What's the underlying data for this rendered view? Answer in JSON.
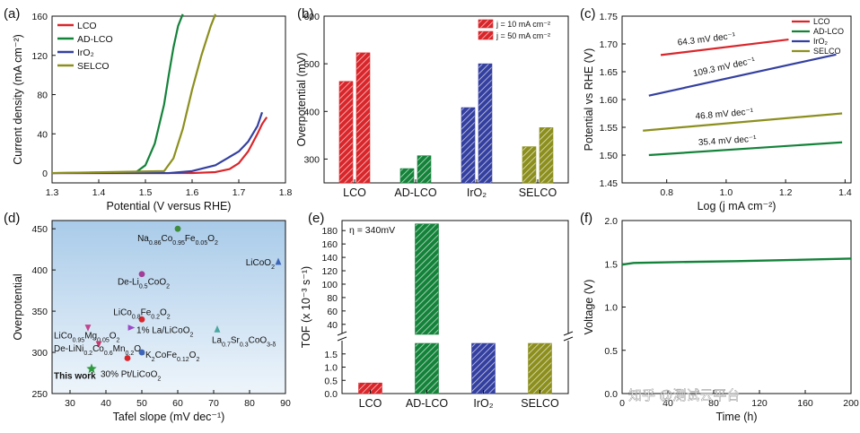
{
  "colors": {
    "LCO": "#d9262b",
    "AD-LCO": "#14833a",
    "IrO2": "#3440a0",
    "SELCO": "#8c8f1d",
    "axis": "#111111",
    "bgBlue": "#a9cbe9"
  },
  "watermark": "知乎 @测试云平台",
  "chart_data": [
    {
      "panel": "(a)",
      "type": "line",
      "xlabel": "Potential (V versus RHE)",
      "ylabel": "Current density (mA cm⁻²)",
      "xlim": [
        1.3,
        1.8
      ],
      "ylim": [
        -10,
        160
      ],
      "xticks": [
        "1.3",
        "1.4",
        "1.5",
        "1.6",
        "1.7",
        "1.8"
      ],
      "yticks": [
        "0",
        "40",
        "80",
        "120",
        "160"
      ],
      "legend": [
        "LCO",
        "AD-LCO",
        "IrO₂",
        "SELCO"
      ],
      "series": [
        {
          "name": "LCO",
          "x": [
            1.3,
            1.6,
            1.65,
            1.68,
            1.7,
            1.72,
            1.74,
            1.75,
            1.76
          ],
          "y": [
            0,
            0,
            1,
            4,
            10,
            22,
            40,
            50,
            57
          ]
        },
        {
          "name": "AD-LCO",
          "x": [
            1.3,
            1.48,
            1.5,
            1.52,
            1.54,
            1.55,
            1.56,
            1.57,
            1.58
          ],
          "y": [
            0,
            1,
            8,
            30,
            70,
            100,
            128,
            150,
            162
          ]
        },
        {
          "name": "IrO2",
          "x": [
            1.3,
            1.55,
            1.6,
            1.65,
            1.7,
            1.72,
            1.74,
            1.75
          ],
          "y": [
            0,
            0,
            2,
            8,
            22,
            32,
            48,
            62
          ]
        },
        {
          "name": "SELCO",
          "x": [
            1.3,
            1.54,
            1.56,
            1.58,
            1.6,
            1.62,
            1.64,
            1.65
          ],
          "y": [
            0,
            2,
            15,
            45,
            85,
            120,
            150,
            162
          ]
        }
      ]
    },
    {
      "panel": "(b)",
      "type": "bar",
      "ylabel": "Overpotential (mV)",
      "ylim": [
        250,
        600
      ],
      "yticks": [
        "300",
        "400",
        "500",
        "600"
      ],
      "categories": [
        "LCO",
        "AD-LCO",
        "IrO₂",
        "SELCO"
      ],
      "series": [
        {
          "name": "j = 10 mA cm⁻²",
          "values": [
            463,
            280,
            408,
            326
          ]
        },
        {
          "name": "j = 50 mA cm⁻²",
          "values": [
            523,
            307,
            500,
            366
          ]
        }
      ]
    },
    {
      "panel": "(c)",
      "type": "line",
      "xlabel": "Log (j mA cm⁻²)",
      "ylabel": "Potential vs RHE (V)",
      "xlim": [
        0.65,
        1.42
      ],
      "ylim": [
        1.45,
        1.75
      ],
      "xticks": [
        "0.8",
        "1.0",
        "1.2",
        "1.4"
      ],
      "yticks": [
        "1.45",
        "1.50",
        "1.55",
        "1.60",
        "1.65",
        "1.70",
        "1.75"
      ],
      "legend": [
        "LCO",
        "AD-LCO",
        "IrO₂",
        "SELCO"
      ],
      "series": [
        {
          "name": "LCO",
          "x": [
            0.78,
            1.21
          ],
          "y": [
            1.68,
            1.708
          ],
          "label": "64.3 mV dec⁻¹"
        },
        {
          "name": "AD-LCO",
          "x": [
            0.74,
            1.39
          ],
          "y": [
            1.5,
            1.523
          ],
          "label": "35.4 mV dec⁻¹"
        },
        {
          "name": "IrO2",
          "x": [
            0.74,
            1.37
          ],
          "y": [
            1.607,
            1.681
          ],
          "label": "109.3 mV dec⁻¹"
        },
        {
          "name": "SELCO",
          "x": [
            0.72,
            1.39
          ],
          "y": [
            1.544,
            1.575
          ],
          "label": "46.8 mV dec⁻¹"
        }
      ]
    },
    {
      "panel": "(d)",
      "type": "scatter",
      "xlabel": "Tafel slope (mV dec⁻¹)",
      "ylabel": "Overpotential",
      "xlim": [
        25,
        90
      ],
      "ylim": [
        250,
        460
      ],
      "xticks": [
        "30",
        "40",
        "50",
        "60",
        "70",
        "80",
        "90"
      ],
      "yticks": [
        "250",
        "300",
        "350",
        "400",
        "450"
      ],
      "points": [
        {
          "x": 60,
          "y": 450,
          "label": "Na0.86Co0.95Fe0.05O2",
          "color": "#3e8c3c",
          "shape": "o"
        },
        {
          "x": 88,
          "y": 410,
          "label": "LiCoO2",
          "color": "#3d66b8",
          "shape": "^"
        },
        {
          "x": 50,
          "y": 395,
          "label": "De-Li0.5CoO2",
          "color": "#a23c96",
          "shape": "o"
        },
        {
          "x": 50,
          "y": 340,
          "label": "LiCo0.8Fe0.2O2",
          "color": "#d9262b",
          "shape": "o"
        },
        {
          "x": 47,
          "y": 330,
          "label": "1% La/LiCoO2",
          "color": "#9b49c9",
          "shape": ">"
        },
        {
          "x": 71,
          "y": 328,
          "label": "La0.7Sr0.3CoO3-δ",
          "color": "#4aa6a0",
          "shape": "^"
        },
        {
          "x": 35,
          "y": 330,
          "label": "LiCo0.95Mg0.05O2",
          "color": "#c5448f",
          "shape": "v"
        },
        {
          "x": 38,
          "y": 310,
          "label": "De-LiNi0.2Co0.6Mn0.2O2",
          "color": "#c23a6f",
          "shape": "v"
        },
        {
          "x": 50,
          "y": 300,
          "label": "K2CoFe0.12O2",
          "color": "#3d66b8",
          "shape": "o"
        },
        {
          "x": 46,
          "y": 293,
          "label": "30% Pt/LiCoO2",
          "color": "#d9262b",
          "shape": "o"
        },
        {
          "x": 36,
          "y": 280,
          "label": "This work",
          "color": "#2e9a3e",
          "shape": "*"
        }
      ]
    },
    {
      "panel": "(e)",
      "type": "bar",
      "ylabel": "TOF (x 10⁻³ s⁻¹)",
      "annotation": "η = 340mV",
      "yticksLow": [
        "0.0",
        "0.5",
        "1.0",
        "1.5"
      ],
      "yticksHigh": [
        "40",
        "60",
        "80",
        "100",
        "120",
        "140",
        "160",
        "180"
      ],
      "categories": [
        "LCO",
        "AD-LCO",
        "IrO₂",
        "SELCO"
      ],
      "values": [
        0.4,
        190,
        15,
        25
      ]
    },
    {
      "panel": "(f)",
      "type": "line",
      "xlabel": "Time (h)",
      "ylabel": "Voltage (V)",
      "xlim": [
        0,
        200
      ],
      "ylim": [
        0,
        2.0
      ],
      "xticks": [
        "0",
        "40",
        "80",
        "120",
        "160",
        "200"
      ],
      "yticks": [
        "0.0",
        "0.5",
        "1.0",
        "1.5",
        "2.0"
      ],
      "series": [
        {
          "name": "AD-LCO",
          "x": [
            0,
            10,
            50,
            100,
            150,
            200
          ],
          "y": [
            1.49,
            1.51,
            1.52,
            1.53,
            1.545,
            1.56
          ]
        }
      ]
    }
  ]
}
